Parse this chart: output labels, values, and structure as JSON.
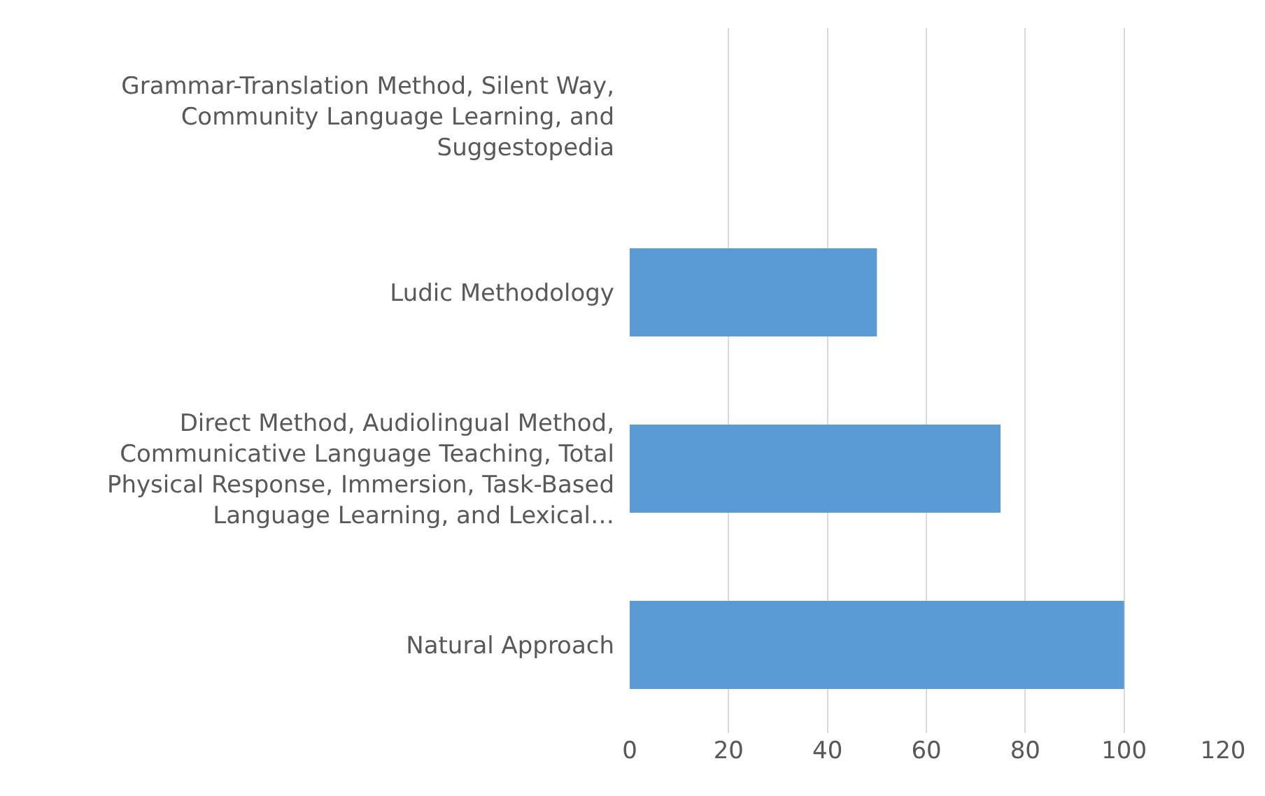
{
  "chart_data": {
    "type": "bar",
    "orientation": "horizontal",
    "categories": [
      "Grammar-Translation Method, Silent Way, Community Language Learning, and Suggestopedia",
      "Ludic Methodology",
      "Direct Method, Audiolingual Method, Communicative Language Teaching, Total Physical Response, Immersion, Task-Based Language Learning, and Lexical…",
      "Natural Approach"
    ],
    "values": [
      0,
      50,
      75,
      100
    ],
    "color": "#5b9bd5",
    "xlim": [
      0,
      120
    ],
    "xticks": [
      0,
      20,
      40,
      60,
      80,
      100,
      120
    ],
    "grid": "x"
  }
}
